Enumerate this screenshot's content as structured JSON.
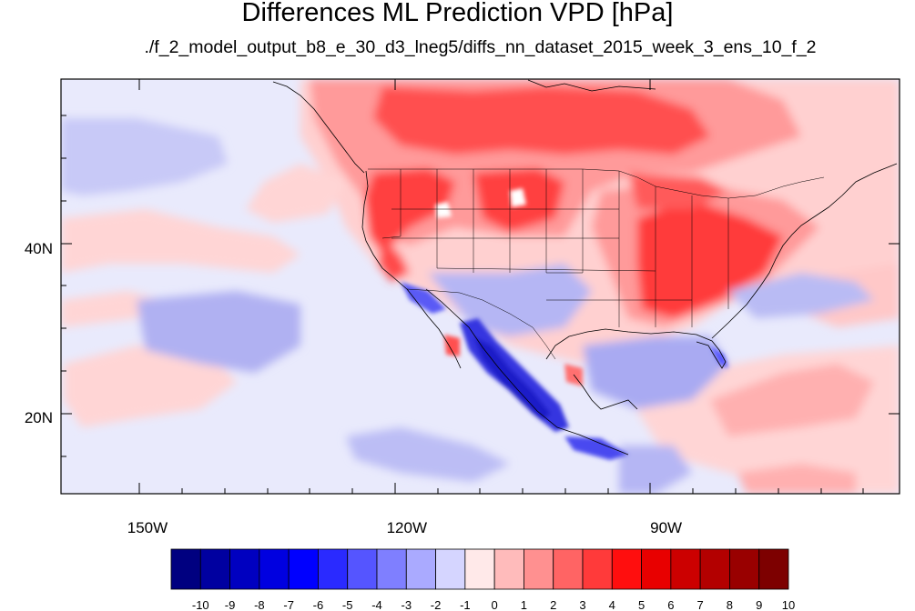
{
  "title": "Differences ML Prediction VPD [hPa]",
  "subtitle": "./f_2_model_output_b8_e_30_d3_lneg5/diffs_nn_dataset_2015_week_3_ens_10_f_2",
  "map": {
    "lon_range": [
      -160,
      -63
    ],
    "lat_range": [
      11,
      60
    ],
    "lon_ticks": [
      {
        "value": -150,
        "label": "150W"
      },
      {
        "value": -120,
        "label": "120W"
      },
      {
        "value": -90,
        "label": "90W"
      }
    ],
    "lat_ticks": [
      {
        "value": 40,
        "label": "40N"
      },
      {
        "value": 20,
        "label": "20N"
      }
    ],
    "background_color": "#e9eafc"
  },
  "colorbar": {
    "levels": [
      "-10",
      "-9",
      "-8",
      "-7",
      "-6",
      "-5",
      "-4",
      "-3",
      "-2",
      "-1",
      "0",
      "1",
      "2",
      "3",
      "4",
      "5",
      "6",
      "7",
      "8",
      "9",
      "10"
    ],
    "colors": [
      "#000080",
      "#0000a0",
      "#0000c0",
      "#0000e0",
      "#0000ff",
      "#2a2aff",
      "#5555ff",
      "#7f7fff",
      "#aaaaff",
      "#d5d5ff",
      "#ffe9e9",
      "#ffbbbb",
      "#ff9090",
      "#ff6464",
      "#ff3a3a",
      "#ff0e0e",
      "#e80000",
      "#cc0000",
      "#b30000",
      "#990000",
      "#7d0000"
    ]
  }
}
